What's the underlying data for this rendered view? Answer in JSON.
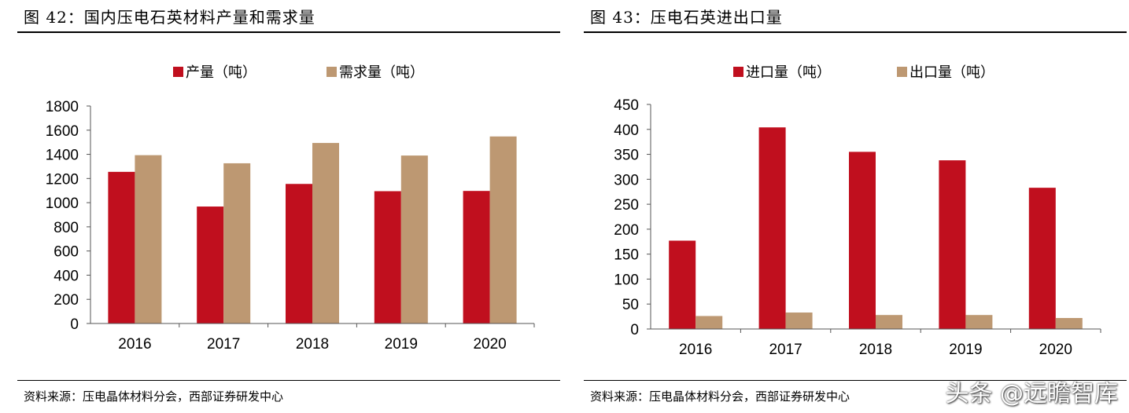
{
  "chart_data": [
    {
      "type": "bar",
      "title": "图 42：国内压电石英材料产量和需求量",
      "categories": [
        "2016",
        "2017",
        "2018",
        "2019",
        "2020"
      ],
      "series": [
        {
          "name": "产量（吨）",
          "values": [
            1255,
            968,
            1155,
            1095,
            1097
          ],
          "color": "#c00f1e"
        },
        {
          "name": "需求量（吨）",
          "values": [
            1393,
            1326,
            1494,
            1390,
            1548
          ],
          "color": "#bd9872"
        }
      ],
      "ylim": [
        0,
        1800
      ],
      "yticks": [
        0,
        200,
        400,
        600,
        800,
        1000,
        1200,
        1400,
        1600,
        1800
      ],
      "grid": false,
      "legend": "top",
      "source": "资料来源：压电晶体材料分会，西部证券研发中心"
    },
    {
      "type": "bar",
      "title": "图 43：压电石英进出口量",
      "categories": [
        "2016",
        "2017",
        "2018",
        "2019",
        "2020"
      ],
      "series": [
        {
          "name": "进口量（吨）",
          "values": [
            177,
            404,
            355,
            338,
            283
          ],
          "color": "#c00f1e"
        },
        {
          "name": "出口量（吨）",
          "values": [
            26,
            33,
            28,
            28,
            22
          ],
          "color": "#bd9872"
        }
      ],
      "ylim": [
        0,
        450
      ],
      "yticks": [
        0,
        50,
        100,
        150,
        200,
        250,
        300,
        350,
        400,
        450
      ],
      "grid": false,
      "legend": "top",
      "source": "资料来源：压电晶体材料分会，西部证券研发中心"
    }
  ],
  "watermark": "头条 @远瞻智库"
}
